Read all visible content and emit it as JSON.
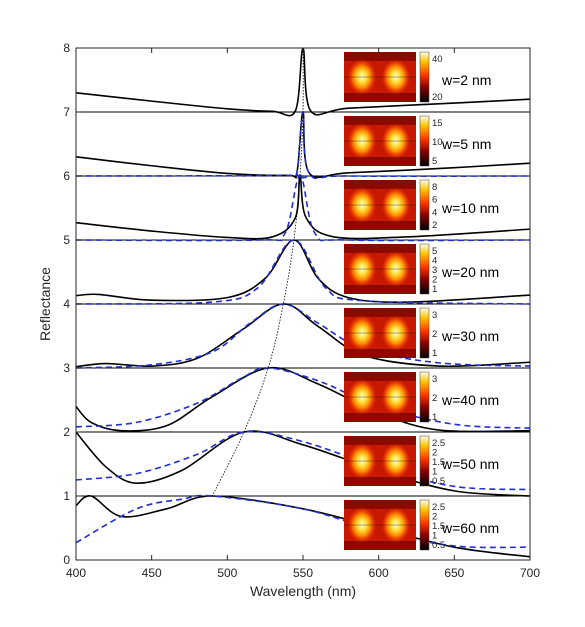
{
  "chart_data": {
    "type": "line",
    "title": "",
    "xlabel": "Wavelength (nm)",
    "ylabel": "Reflectance",
    "xlim": [
      400,
      700
    ],
    "ylim": [
      0,
      8
    ],
    "xticks": [
      400,
      450,
      500,
      550,
      600,
      650,
      700
    ],
    "yticks": [
      0,
      1,
      2,
      3,
      4,
      5,
      6,
      7,
      8
    ],
    "grid": false,
    "panels": [
      {
        "label": "w=2 nm",
        "offset": 7,
        "peak_nm": 550,
        "colorbar_ticks": [
          "40",
          "20"
        ],
        "solid": [
          [
            400,
            0.3
          ],
          [
            450,
            0.17
          ],
          [
            500,
            0.05
          ],
          [
            530,
            0.01
          ],
          [
            545,
            0.02
          ],
          [
            550,
            1.0
          ],
          [
            555,
            0.02
          ],
          [
            580,
            0.06
          ],
          [
            650,
            0.14
          ],
          [
            700,
            0.2
          ]
        ]
      },
      {
        "label": "w=5 nm",
        "offset": 6,
        "peak_nm": 550,
        "colorbar_ticks": [
          "15",
          "10",
          "5"
        ],
        "solid": [
          [
            400,
            0.3
          ],
          [
            450,
            0.16
          ],
          [
            500,
            0.04
          ],
          [
            540,
            0.01
          ],
          [
            546,
            0.06
          ],
          [
            550,
            1.0
          ],
          [
            554,
            0.05
          ],
          [
            580,
            0.05
          ],
          [
            650,
            0.13
          ],
          [
            700,
            0.2
          ]
        ],
        "dashed": [
          [
            400,
            0.0
          ],
          [
            540,
            0.01
          ],
          [
            546,
            0.06
          ],
          [
            550,
            1.0
          ],
          [
            554,
            0.05
          ],
          [
            580,
            0.0
          ],
          [
            700,
            0.0
          ]
        ]
      },
      {
        "label": "w=10 nm",
        "offset": 5,
        "peak_nm": 548,
        "colorbar_ticks": [
          "8",
          "6",
          "4",
          "2"
        ],
        "solid": [
          [
            400,
            0.27
          ],
          [
            450,
            0.14
          ],
          [
            500,
            0.04
          ],
          [
            530,
            0.05
          ],
          [
            545,
            0.35
          ],
          [
            548,
            1.0
          ],
          [
            552,
            0.35
          ],
          [
            570,
            0.05
          ],
          [
            620,
            0.05
          ],
          [
            700,
            0.17
          ]
        ],
        "dashed": [
          [
            400,
            0.0
          ],
          [
            520,
            0.0
          ],
          [
            538,
            0.1
          ],
          [
            548,
            1.0
          ],
          [
            558,
            0.1
          ],
          [
            580,
            0.0
          ],
          [
            700,
            0.0
          ]
        ]
      },
      {
        "label": "w=20 nm",
        "offset": 4,
        "peak_nm": 544,
        "colorbar_ticks": [
          "5",
          "4",
          "3",
          "2",
          "1"
        ],
        "solid": [
          [
            400,
            0.13
          ],
          [
            415,
            0.15
          ],
          [
            450,
            0.06
          ],
          [
            500,
            0.1
          ],
          [
            525,
            0.4
          ],
          [
            544,
            1.0
          ],
          [
            560,
            0.4
          ],
          [
            580,
            0.1
          ],
          [
            620,
            0.03
          ],
          [
            700,
            0.14
          ]
        ],
        "dashed": [
          [
            400,
            0.0
          ],
          [
            490,
            0.03
          ],
          [
            520,
            0.25
          ],
          [
            544,
            1.0
          ],
          [
            565,
            0.25
          ],
          [
            590,
            0.05
          ],
          [
            700,
            0.0
          ]
        ]
      },
      {
        "label": "w=30 nm",
        "offset": 3,
        "peak_nm": 537,
        "colorbar_ticks": [
          "3",
          "2",
          "1"
        ],
        "solid": [
          [
            400,
            0.02
          ],
          [
            420,
            0.07
          ],
          [
            450,
            0.03
          ],
          [
            480,
            0.15
          ],
          [
            510,
            0.6
          ],
          [
            537,
            1.0
          ],
          [
            560,
            0.65
          ],
          [
            590,
            0.2
          ],
          [
            640,
            0.03
          ],
          [
            700,
            0.09
          ]
        ],
        "dashed": [
          [
            400,
            0.0
          ],
          [
            450,
            0.05
          ],
          [
            490,
            0.25
          ],
          [
            515,
            0.7
          ],
          [
            537,
            1.0
          ],
          [
            560,
            0.7
          ],
          [
            590,
            0.3
          ],
          [
            640,
            0.08
          ],
          [
            700,
            0.03
          ]
        ]
      },
      {
        "label": "w=40 nm",
        "offset": 2,
        "peak_nm": 527,
        "colorbar_ticks": [
          "3",
          "2",
          "1"
        ],
        "solid": [
          [
            400,
            0.4
          ],
          [
            410,
            0.15
          ],
          [
            430,
            0.02
          ],
          [
            460,
            0.1
          ],
          [
            490,
            0.55
          ],
          [
            527,
            1.0
          ],
          [
            560,
            0.75
          ],
          [
            600,
            0.3
          ],
          [
            640,
            0.03
          ],
          [
            700,
            0.02
          ]
        ],
        "dashed": [
          [
            400,
            0.08
          ],
          [
            440,
            0.15
          ],
          [
            480,
            0.45
          ],
          [
            510,
            0.85
          ],
          [
            527,
            1.0
          ],
          [
            560,
            0.8
          ],
          [
            600,
            0.4
          ],
          [
            650,
            0.12
          ],
          [
            700,
            0.06
          ]
        ]
      },
      {
        "label": "w=50 nm",
        "offset": 1,
        "peak_nm": 511,
        "colorbar_ticks": [
          "2.5",
          "2",
          "1.5",
          "1",
          "0.5"
        ],
        "solid": [
          [
            400,
            1.0
          ],
          [
            420,
            0.45
          ],
          [
            440,
            0.2
          ],
          [
            470,
            0.4
          ],
          [
            511,
            1.0
          ],
          [
            550,
            0.8
          ],
          [
            600,
            0.4
          ],
          [
            650,
            0.08
          ],
          [
            700,
            0.0
          ]
        ],
        "dashed": [
          [
            400,
            0.25
          ],
          [
            440,
            0.35
          ],
          [
            480,
            0.65
          ],
          [
            511,
            1.0
          ],
          [
            550,
            0.85
          ],
          [
            600,
            0.45
          ],
          [
            650,
            0.15
          ],
          [
            700,
            0.1
          ]
        ]
      },
      {
        "label": "w=60 nm",
        "offset": 0,
        "peak_nm": 490,
        "colorbar_ticks": [
          "2.5",
          "2",
          "1.5",
          "1",
          "0.5"
        ],
        "solid": [
          [
            400,
            0.85
          ],
          [
            410,
            1.0
          ],
          [
            430,
            0.68
          ],
          [
            460,
            0.8
          ],
          [
            490,
            1.0
          ],
          [
            550,
            0.8
          ],
          [
            600,
            0.5
          ],
          [
            650,
            0.2
          ],
          [
            700,
            0.05
          ]
        ],
        "dashed": [
          [
            400,
            0.27
          ],
          [
            440,
            0.8
          ],
          [
            470,
            0.95
          ],
          [
            490,
            1.0
          ],
          [
            550,
            0.8
          ],
          [
            600,
            0.45
          ],
          [
            650,
            0.22
          ],
          [
            700,
            0.2
          ]
        ]
      }
    ],
    "peak_trace": [
      [
        550,
        8
      ],
      [
        550,
        7
      ],
      [
        548,
        6
      ],
      [
        544,
        5
      ],
      [
        537,
        4
      ],
      [
        527,
        3
      ],
      [
        511,
        2
      ],
      [
        490,
        1
      ]
    ],
    "colors": {
      "solid": "#000000",
      "dashed": "#1f2fd0",
      "frame": "#262626",
      "trace": "#000000"
    }
  }
}
